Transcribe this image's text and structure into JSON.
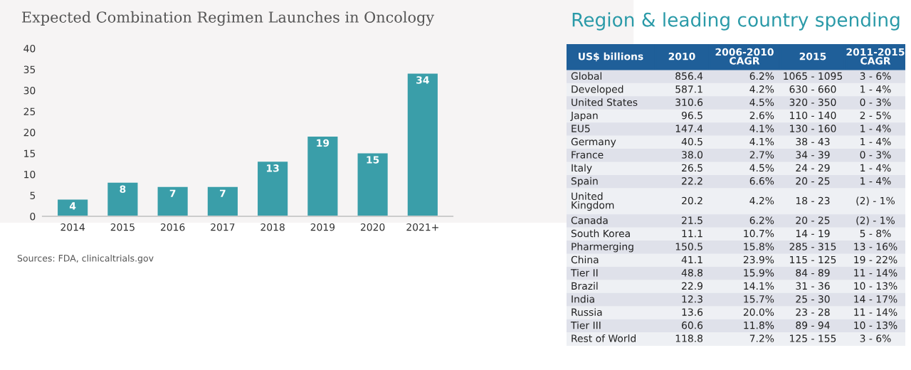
{
  "chart_data": [
    {
      "type": "bar",
      "title": "Expected Combination Regimen Launches in Oncology",
      "categories": [
        "2014",
        "2015",
        "2016",
        "2017",
        "2018",
        "2019",
        "2020",
        "2021+"
      ],
      "values": [
        4,
        8,
        7,
        7,
        13,
        19,
        15,
        34
      ],
      "color": "#3a9ea9",
      "ylim": [
        0,
        40
      ],
      "yticks": [
        0,
        5,
        10,
        15,
        20,
        25,
        30,
        35,
        40
      ],
      "grid": false,
      "data_labels": true,
      "annotations": [
        "Sources: FDA, clinicaltrials.gov"
      ]
    },
    {
      "type": "other",
      "title": "Region & leading country spending",
      "categories": [
        "US$ billions",
        "2010",
        "2006-2010\nCAGR",
        "2015",
        "2011-2015\nCAGR"
      ],
      "y_categories": [
        "Global",
        "Developed",
        "United States",
        "Japan",
        "EU5",
        "Germany",
        "France",
        "Italy",
        "Spain",
        "United\nKingdom",
        "Canada",
        "South Korea",
        "Pharmerging",
        "China",
        "Tier II",
        "Brazil",
        "India",
        "Russia",
        "Tier III",
        "Rest of World"
      ],
      "cell_labels": [
        [
          "856.4",
          "6.2%",
          "1065 - 1095",
          "3 - 6%"
        ],
        [
          "587.1",
          "4.2%",
          "630 - 660",
          "1 - 4%"
        ],
        [
          "310.6",
          "4.5%",
          "320 - 350",
          "0 - 3%"
        ],
        [
          "96.5",
          "2.6%",
          "110 - 140",
          "2 - 5%"
        ],
        [
          "147.4",
          "4.1%",
          "130 - 160",
          "1 - 4%"
        ],
        [
          "40.5",
          "4.1%",
          "38 - 43",
          "1 - 4%"
        ],
        [
          "38.0",
          "2.7%",
          "34 - 39",
          "0 - 3%"
        ],
        [
          "26.5",
          "4.5%",
          "24 - 29",
          "1 - 4%"
        ],
        [
          "22.2",
          "6.6%",
          "20 - 25",
          "1 - 4%"
        ],
        [
          "20.2",
          "4.2%",
          "18 - 23",
          "(2) - 1%"
        ],
        [
          "21.5",
          "6.2%",
          "20 - 25",
          "(2) - 1%"
        ],
        [
          "11.1",
          "10.7%",
          "14 - 19",
          "5 - 8%"
        ],
        [
          "150.5",
          "15.8%",
          "285 - 315",
          "13 - 16%"
        ],
        [
          "41.1",
          "23.9%",
          "115 - 125",
          "19 - 22%"
        ],
        [
          "48.8",
          "15.9%",
          "84 - 89",
          "11 - 14%"
        ],
        [
          "22.9",
          "14.1%",
          "31 - 36",
          "10 - 13%"
        ],
        [
          "12.3",
          "15.7%",
          "25 - 30",
          "14 - 17%"
        ],
        [
          "13.6",
          "20.0%",
          "23 - 28",
          "11 - 14%"
        ],
        [
          "60.6",
          "11.8%",
          "89 - 94",
          "10 - 13%"
        ],
        [
          "118.8",
          "7.2%",
          "125 - 155",
          "3 - 6%"
        ]
      ]
    }
  ]
}
